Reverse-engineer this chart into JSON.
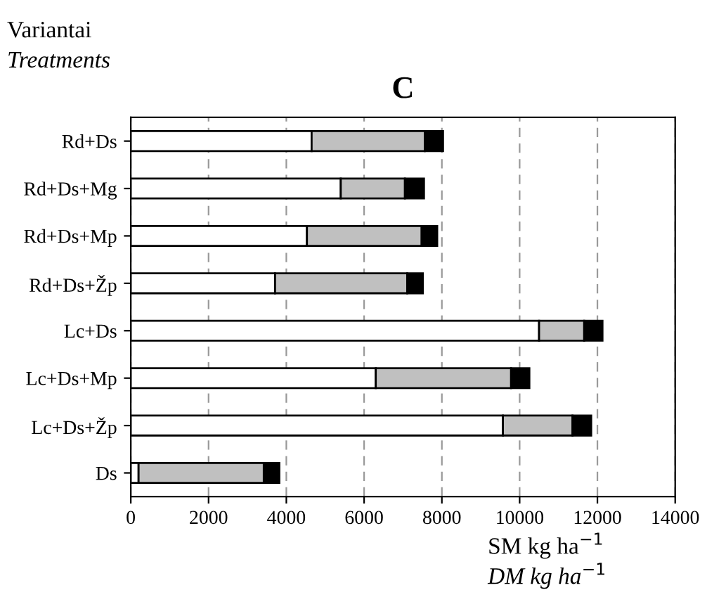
{
  "chart_data": {
    "type": "bar",
    "orientation": "horizontal",
    "stacked": true,
    "title": "C",
    "ylabel": "Variantai\nTreatments",
    "xlabel": "SM kg ha$^{−1}$\nDM kg ha$^{−1}$",
    "categories": [
      "Rd+Ds",
      "Rd+Ds+Mg",
      "Rd+Ds+Mp",
      "Rd+Ds+Žp",
      "Lc+Ds",
      "Lc+Ds+Mp",
      "Lc+Ds+Žp",
      "Ds"
    ],
    "series": [
      {
        "color": "#ffffff",
        "values": [
          4650,
          5400,
          4530,
          3710,
          10500,
          6300,
          9570,
          200
        ]
      },
      {
        "color": "#c0c0c0",
        "values": [
          2910,
          1650,
          2950,
          3400,
          1160,
          3480,
          1790,
          3220
        ]
      },
      {
        "color": "#000000",
        "values": [
          470,
          490,
          400,
          400,
          470,
          470,
          480,
          400
        ]
      }
    ],
    "xlim": [
      0,
      14000
    ],
    "xticks": [
      0,
      2000,
      4000,
      6000,
      8000,
      10000,
      12000,
      14000
    ],
    "grid": "x",
    "legend": false
  }
}
